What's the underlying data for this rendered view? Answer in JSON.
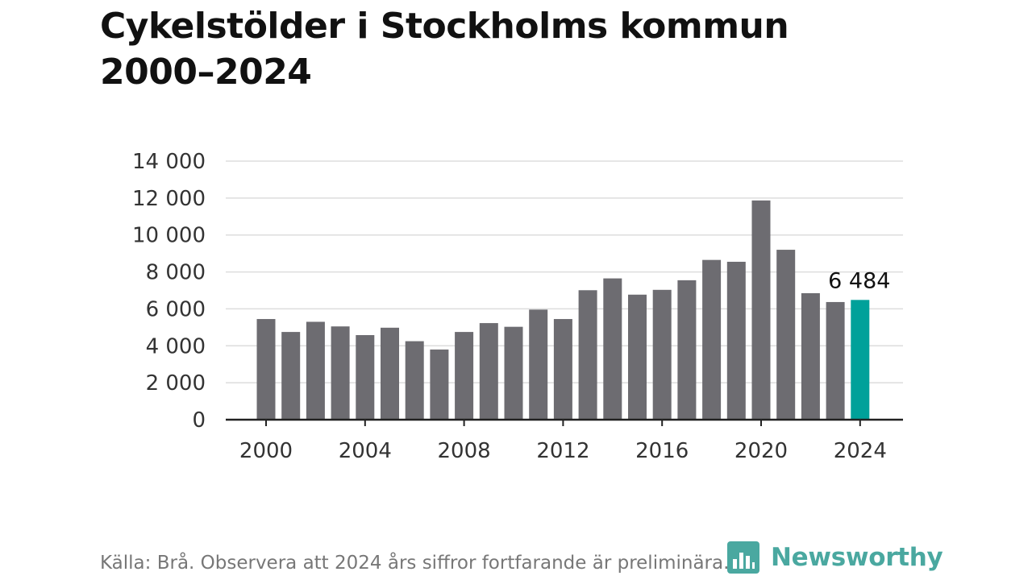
{
  "title": {
    "line1": "Cykelstölder i Stockholms kommun",
    "line2": "2000–2024"
  },
  "source": "Källa: Brå. Observera att 2024 års siffror fortfarande är preliminära.",
  "logo": {
    "text": "Newsworthy",
    "icon": "bar-chart-logo-icon",
    "color": "#4aa8a0"
  },
  "chart_data": {
    "type": "bar",
    "categories": [
      "2000",
      "2001",
      "2002",
      "2003",
      "2004",
      "2005",
      "2006",
      "2007",
      "2008",
      "2009",
      "2010",
      "2011",
      "2012",
      "2013",
      "2014",
      "2015",
      "2016",
      "2017",
      "2018",
      "2019",
      "2020",
      "2021",
      "2022",
      "2023",
      "2024"
    ],
    "values": [
      5450,
      4750,
      5300,
      5050,
      4580,
      4980,
      4250,
      3800,
      4750,
      5230,
      5030,
      5960,
      5450,
      7010,
      7650,
      6770,
      7030,
      7550,
      8650,
      8550,
      11870,
      9200,
      6850,
      6370,
      6484
    ],
    "xticks": [
      "2000",
      "2004",
      "2008",
      "2012",
      "2016",
      "2020",
      "2024"
    ],
    "yticks": [
      0,
      2000,
      4000,
      6000,
      8000,
      10000,
      12000,
      14000
    ],
    "ytick_labels": [
      "0",
      "2 000",
      "4 000",
      "6 000",
      "8 000",
      "10 000",
      "12 000",
      "14 000"
    ],
    "ylim": [
      0,
      14000
    ],
    "grid": true,
    "colors": {
      "bar": "#6d6c71",
      "highlight": "#00a19a",
      "grid": "#dddddd",
      "axis": "#222222"
    },
    "highlight_index": 24,
    "annotation": {
      "text": "6 484",
      "category": "2024"
    }
  }
}
